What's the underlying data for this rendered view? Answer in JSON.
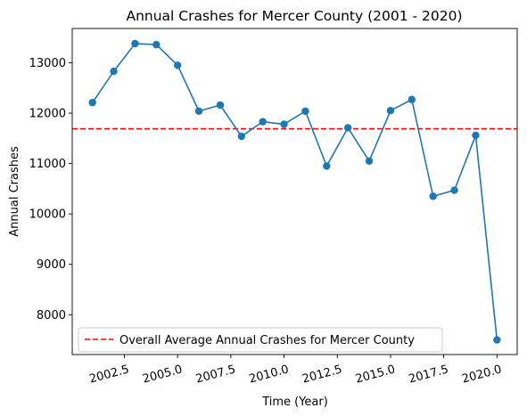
{
  "chart_data": {
    "type": "line",
    "title": "Annual Crashes for Mercer County (2001 - 2020)",
    "xlabel": "Time (Year)",
    "ylabel": "Annual Crashes",
    "x": [
      2001,
      2002,
      2003,
      2004,
      2005,
      2006,
      2007,
      2008,
      2009,
      2010,
      2011,
      2012,
      2013,
      2014,
      2015,
      2016,
      2017,
      2018,
      2019,
      2020
    ],
    "series": [
      {
        "values": [
          12210,
          12830,
          13380,
          13360,
          12950,
          12040,
          12160,
          11540,
          11830,
          11780,
          12040,
          10950,
          11710,
          11050,
          12050,
          12270,
          10350,
          10470,
          11560,
          7500
        ],
        "color": "#1f77b4"
      }
    ],
    "reference_line": {
      "label": "Overall Average Annual Crashes for Mercer County",
      "value": 11690,
      "color": "#ff0000",
      "style": "dashed"
    },
    "xlim": [
      2000.05,
      2020.95
    ],
    "ylim": [
      7210,
      13680
    ],
    "xticks": [
      "2002.5",
      "2005.0",
      "2007.5",
      "2010.0",
      "2012.5",
      "2015.0",
      "2017.5",
      "2020.0"
    ],
    "xtick_values": [
      2002.5,
      2005.0,
      2007.5,
      2010.0,
      2012.5,
      2015.0,
      2017.5,
      2020.0
    ],
    "xtick_rotation": 15,
    "yticks": [
      "8000",
      "9000",
      "10000",
      "11000",
      "12000",
      "13000"
    ],
    "ytick_values": [
      8000,
      9000,
      10000,
      11000,
      12000,
      13000
    ],
    "grid": false,
    "legend_position": "lower-left"
  }
}
